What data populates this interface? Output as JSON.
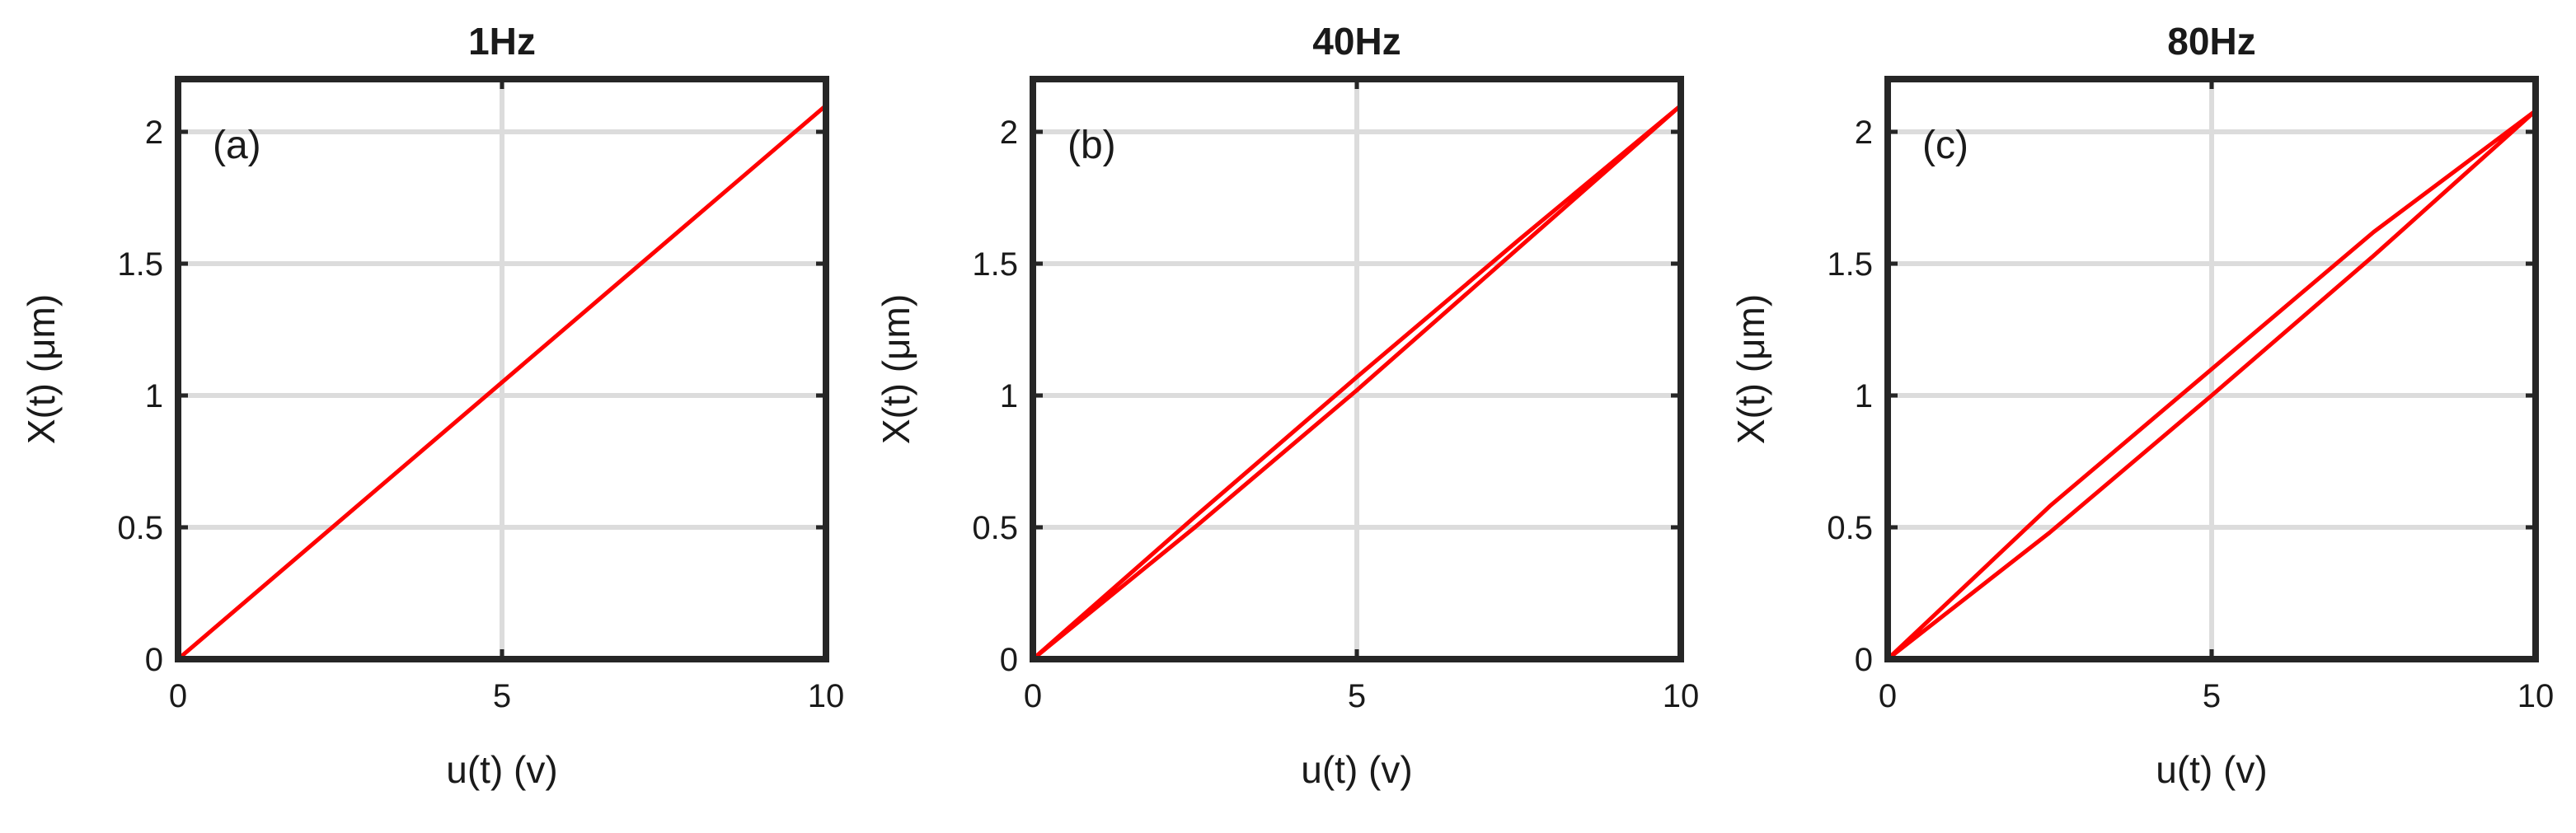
{
  "chart_data": [
    {
      "type": "line",
      "title": "1Hz",
      "annotation": "(a)",
      "xlabel": "u(t) (v)",
      "ylabel": "X(t) (μm)",
      "xlim": [
        0,
        10
      ],
      "ylim": [
        0,
        2.2
      ],
      "xticks": [
        0,
        5,
        10
      ],
      "xtick_labels": [
        "0",
        "5",
        "10"
      ],
      "yticks": [
        0,
        0.5,
        1,
        1.5,
        2
      ],
      "ytick_labels": [
        "0",
        "0.5",
        "1",
        "1.5",
        "2"
      ],
      "grid": true,
      "series": [
        {
          "color": "#ff0000",
          "x": [
            0,
            10
          ],
          "y": [
            0,
            2.1
          ]
        }
      ]
    },
    {
      "type": "line",
      "title": "40Hz",
      "annotation": "(b)",
      "xlabel": "u(t) (v)",
      "ylabel": "X(t) (μm)",
      "xlim": [
        0,
        10
      ],
      "ylim": [
        0,
        2.2
      ],
      "xticks": [
        0,
        5,
        10
      ],
      "xtick_labels": [
        "0",
        "5",
        "10"
      ],
      "yticks": [
        0,
        0.5,
        1,
        1.5,
        2
      ],
      "ytick_labels": [
        "0",
        "0.5",
        "1",
        "1.5",
        "2"
      ],
      "grid": true,
      "series": [
        {
          "color": "#ff0000",
          "x": [
            0,
            2.5,
            5,
            7.5,
            10,
            7.5,
            5,
            2.5,
            0
          ],
          "y": [
            0,
            0.5,
            1.02,
            1.56,
            2.1,
            1.59,
            1.07,
            0.54,
            0
          ]
        }
      ]
    },
    {
      "type": "line",
      "title": "80Hz",
      "annotation": "(c)",
      "xlabel": "u(t) (v)",
      "ylabel": "X(t) (μm)",
      "xlim": [
        0,
        10
      ],
      "ylim": [
        0,
        2.2
      ],
      "xticks": [
        0,
        5,
        10
      ],
      "xtick_labels": [
        "0",
        "5",
        "10"
      ],
      "yticks": [
        0,
        0.5,
        1,
        1.5,
        2
      ],
      "ytick_labels": [
        "0",
        "0.5",
        "1",
        "1.5",
        "2"
      ],
      "grid": true,
      "series": [
        {
          "color": "#ff0000",
          "x": [
            0,
            2.5,
            5,
            7.5,
            10,
            7.5,
            5,
            2.5,
            0
          ],
          "y": [
            0,
            0.48,
            1.0,
            1.53,
            2.08,
            1.62,
            1.1,
            0.58,
            0
          ]
        }
      ]
    }
  ]
}
